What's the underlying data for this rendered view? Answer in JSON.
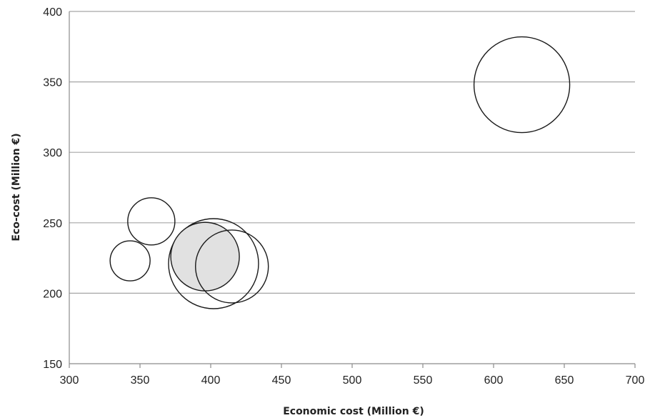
{
  "chart_data": {
    "type": "bubble",
    "title": "",
    "xlabel": "Economic cost (Million €)",
    "ylabel": "Eco-cost (Million  €)",
    "xlim": [
      300,
      700
    ],
    "ylim": [
      150,
      400
    ],
    "x_ticks": [
      300,
      350,
      400,
      450,
      500,
      550,
      600,
      650,
      700
    ],
    "y_ticks": [
      150,
      200,
      250,
      300,
      350,
      400
    ],
    "grid": "horizontal",
    "legend": "none",
    "colors": {
      "bubble_fill": "#ffffff",
      "bubble_highlight_fill": "#dedede",
      "bubble_stroke": "#1a1a1a",
      "gridline": "#a6a6a6",
      "axis": "#8c8c8c"
    },
    "points": [
      {
        "x": 620,
        "y": 348,
        "size": 67,
        "highlight": false
      },
      {
        "x": 358,
        "y": 251,
        "size": 33,
        "highlight": false
      },
      {
        "x": 343,
        "y": 223,
        "size": 28,
        "highlight": false
      },
      {
        "x": 402,
        "y": 221,
        "size": 63,
        "highlight": false
      },
      {
        "x": 396,
        "y": 226,
        "size": 48,
        "highlight": true
      },
      {
        "x": 415,
        "y": 219,
        "size": 51,
        "highlight": false
      }
    ]
  }
}
